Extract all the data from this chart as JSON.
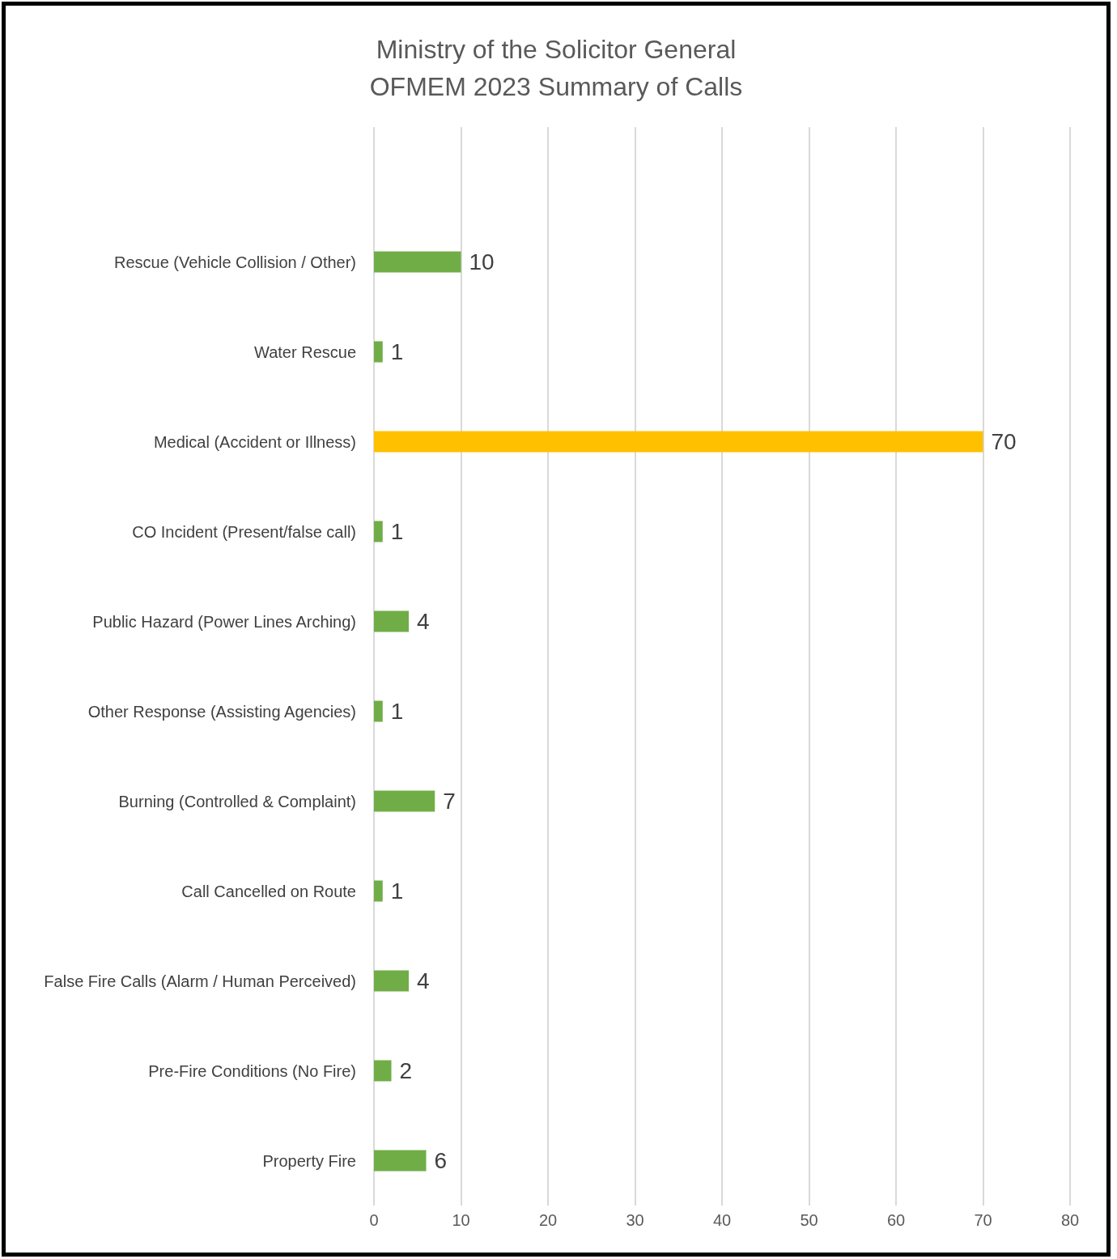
{
  "chart_data": {
    "type": "bar",
    "orientation": "horizontal",
    "title": "Ministry of the Solicitor General\nOFMEM 2023 Summary of Calls",
    "categories": [
      null,
      "Rescue (Vehicle Collision / Other)",
      "Water Rescue",
      "Medical (Accident or Illness)",
      "CO Incident (Present/false call)",
      "Public Hazard (Power Lines Arching)",
      "Other Response (Assisting Agencies)",
      "Burning (Controlled & Complaint)",
      "Call Cancelled on Route",
      "False Fire Calls (Alarm / Human Perceived)",
      "Pre-Fire Conditions (No Fire)",
      "Property Fire"
    ],
    "values": [
      null,
      10,
      1,
      70,
      1,
      4,
      1,
      7,
      1,
      4,
      2,
      6
    ],
    "colors": [
      "#70ad47",
      "#70ad47",
      "#70ad47",
      "#ffc000",
      "#70ad47",
      "#70ad47",
      "#70ad47",
      "#70ad47",
      "#70ad47",
      "#70ad47",
      "#70ad47",
      "#70ad47"
    ],
    "xlim": [
      0,
      80
    ],
    "xticks": [
      0,
      10,
      20,
      30,
      40,
      50,
      60,
      70,
      80
    ],
    "grid": "x",
    "data_labels": true
  }
}
